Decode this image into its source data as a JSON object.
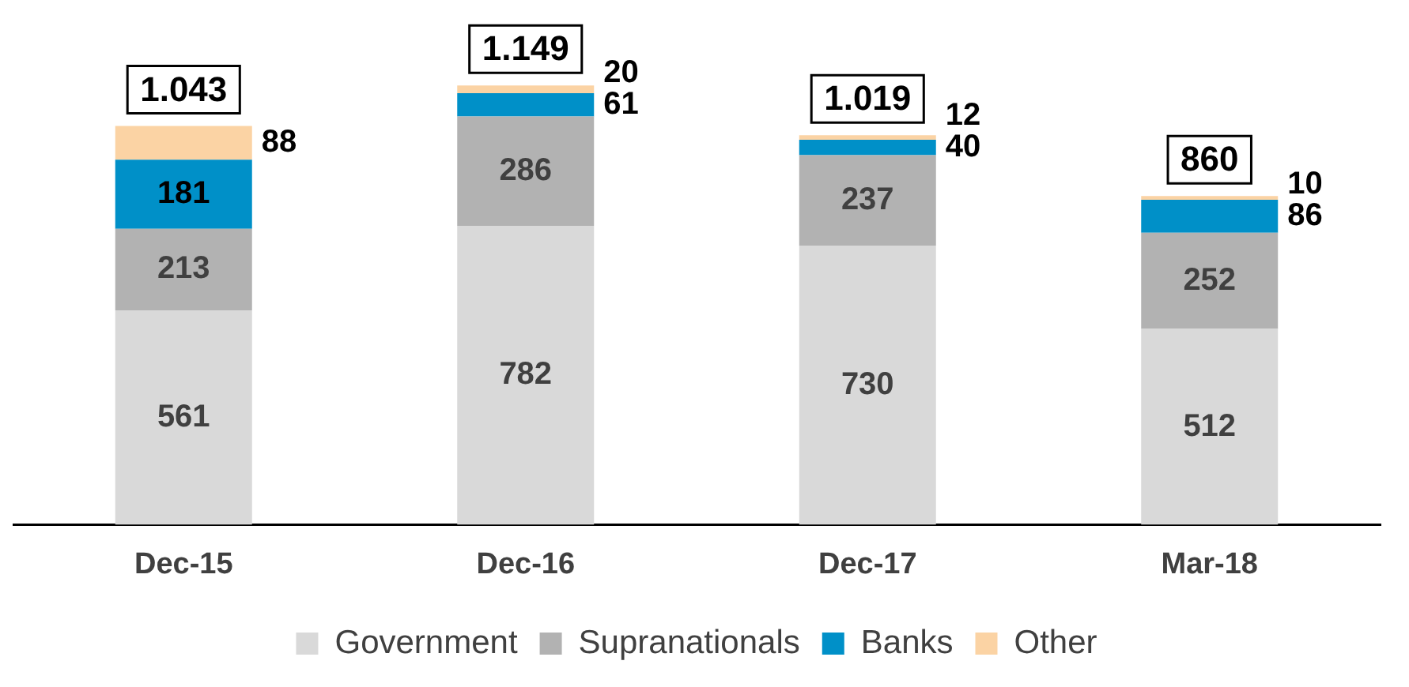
{
  "chart_data": {
    "type": "bar",
    "stacked": true,
    "categories": [
      "Dec-15",
      "Dec-16",
      "Dec-17",
      "Mar-18"
    ],
    "series": [
      {
        "name": "Government",
        "color": "#d9d9d9",
        "values": [
          561,
          782,
          730,
          512
        ]
      },
      {
        "name": "Supranationals",
        "color": "#b2b2b2",
        "values": [
          213,
          286,
          237,
          252
        ]
      },
      {
        "name": "Banks",
        "color": "#0090c8",
        "values": [
          181,
          61,
          40,
          86
        ]
      },
      {
        "name": "Other",
        "color": "#fbd3a4",
        "values": [
          88,
          20,
          12,
          10
        ]
      }
    ],
    "data_labels": true,
    "totals": [
      "1.043",
      "1.149",
      "1.019",
      "860"
    ],
    "legend": "bottom"
  }
}
